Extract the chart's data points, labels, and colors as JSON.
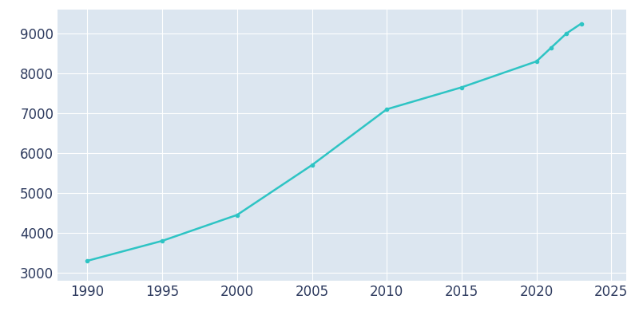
{
  "years": [
    1990,
    1995,
    2000,
    2005,
    2010,
    2015,
    2020,
    2021,
    2022,
    2023
  ],
  "population": [
    3300,
    3800,
    4450,
    5700,
    7100,
    7650,
    8300,
    8650,
    9000,
    9250
  ],
  "line_color": "#2ec4c4",
  "bg_color": "#dce6f0",
  "fig_bg_color": "#ffffff",
  "xlim": [
    1988,
    2026
  ],
  "ylim": [
    2800,
    9600
  ],
  "xticks": [
    1990,
    1995,
    2000,
    2005,
    2010,
    2015,
    2020,
    2025
  ],
  "yticks": [
    3000,
    4000,
    5000,
    6000,
    7000,
    8000,
    9000
  ],
  "grid_color": "#ffffff",
  "tick_color": "#2d3a5e",
  "tick_fontsize": 12,
  "linewidth": 1.8
}
